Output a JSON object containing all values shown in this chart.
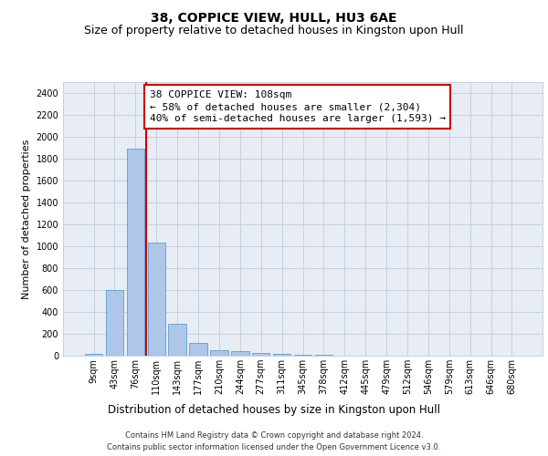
{
  "title": "38, COPPICE VIEW, HULL, HU3 6AE",
  "subtitle": "Size of property relative to detached houses in Kingston upon Hull",
  "xlabel": "Distribution of detached houses by size in Kingston upon Hull",
  "ylabel": "Number of detached properties",
  "footer_line1": "Contains HM Land Registry data © Crown copyright and database right 2024.",
  "footer_line2": "Contains public sector information licensed under the Open Government Licence v3.0.",
  "bar_labels": [
    "9sqm",
    "43sqm",
    "76sqm",
    "110sqm",
    "143sqm",
    "177sqm",
    "210sqm",
    "244sqm",
    "277sqm",
    "311sqm",
    "345sqm",
    "378sqm",
    "412sqm",
    "445sqm",
    "479sqm",
    "512sqm",
    "546sqm",
    "579sqm",
    "613sqm",
    "646sqm",
    "680sqm"
  ],
  "bar_values": [
    20,
    600,
    1890,
    1035,
    290,
    120,
    52,
    42,
    27,
    18,
    8,
    5,
    3,
    3,
    2,
    1,
    1,
    1,
    1,
    0,
    0
  ],
  "bar_color": "#aec6e8",
  "bar_edge_color": "#5a9fd4",
  "property_line_x": 2.5,
  "property_line_color": "#cc0000",
  "annotation_text_line1": "38 COPPICE VIEW: 108sqm",
  "annotation_text_line2": "← 58% of detached houses are smaller (2,304)",
  "annotation_text_line3": "40% of semi-detached houses are larger (1,593) →",
  "annotation_box_color": "#cc0000",
  "ylim": [
    0,
    2500
  ],
  "yticks": [
    0,
    200,
    400,
    600,
    800,
    1000,
    1200,
    1400,
    1600,
    1800,
    2000,
    2200,
    2400
  ],
  "grid_color": "#c8d0de",
  "bg_color": "#e8edf5",
  "title_fontsize": 10,
  "subtitle_fontsize": 9,
  "ylabel_fontsize": 8,
  "xlabel_fontsize": 8.5,
  "annotation_fontsize": 8,
  "tick_fontsize": 7,
  "footer_fontsize": 6
}
